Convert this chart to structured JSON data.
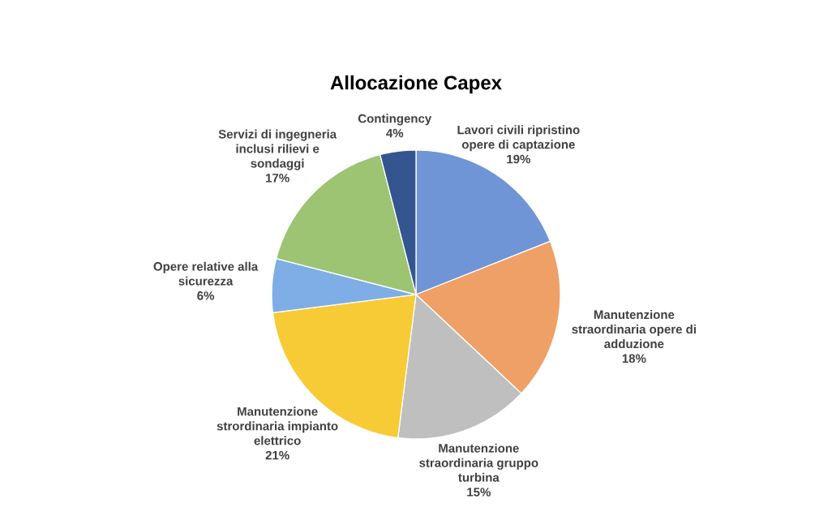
{
  "chart_data": {
    "type": "pie",
    "title": "Allocazione Capex",
    "categories": [
      "Lavori civili ripristino opere di captazione",
      "Manutenzione straordinaria opere di adduzione",
      "Manutenzione straordinaria gruppo turbina",
      "Manutenzione strordinaria impianto elettrico",
      "Opere relative alla sicurezza",
      "Servizi di ingegneria inclusi rilievi e sondaggi",
      "Contingency"
    ],
    "values": [
      19,
      18,
      15,
      21,
      6,
      17,
      4
    ],
    "value_labels": [
      "19%",
      "18%",
      "15%",
      "21%",
      "6%",
      "17%",
      "4%"
    ],
    "colors": [
      "#6f95d6",
      "#eea066",
      "#bfbfbf",
      "#f7cb35",
      "#7eaee5",
      "#9cc472",
      "#34558f"
    ]
  }
}
